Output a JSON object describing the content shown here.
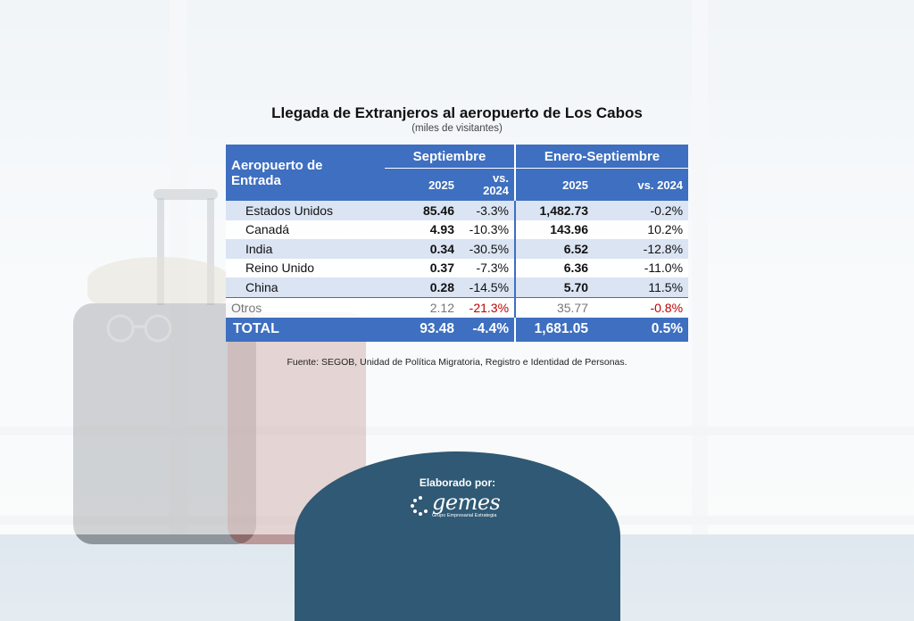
{
  "title": "Llegada de Extranjeros al aeropuerto de Los Cabos",
  "subtitle": "(miles de visitantes)",
  "table": {
    "header_left": "Aeropuerto de Entrada",
    "group1": "Septiembre",
    "group2": "Enero-Septiembre",
    "col_year": "2025",
    "col_vs_short": "vs. 2024",
    "col_vs": "vs. 2024",
    "rows": [
      {
        "country": "Estados Unidos",
        "sep": "85.46",
        "sep_vs": "-3.3%",
        "ytd": "1,482.73",
        "ytd_vs": "-0.2%"
      },
      {
        "country": "Canadá",
        "sep": "4.93",
        "sep_vs": "-10.3%",
        "ytd": "143.96",
        "ytd_vs": "10.2%"
      },
      {
        "country": "India",
        "sep": "0.34",
        "sep_vs": "-30.5%",
        "ytd": "6.52",
        "ytd_vs": "-12.8%"
      },
      {
        "country": "Reino Unido",
        "sep": "0.37",
        "sep_vs": "-7.3%",
        "ytd": "6.36",
        "ytd_vs": "-11.0%"
      },
      {
        "country": "China",
        "sep": "0.28",
        "sep_vs": "-14.5%",
        "ytd": "5.70",
        "ytd_vs": "11.5%"
      }
    ],
    "otros": {
      "country": "Otros",
      "sep": "2.12",
      "sep_vs": "-21.3%",
      "ytd": "35.77",
      "ytd_vs": "-0.8%"
    },
    "total": {
      "country": "TOTAL",
      "sep": "93.48",
      "sep_vs": "-4.4%",
      "ytd": "1,681.05",
      "ytd_vs": "0.5%"
    }
  },
  "source": "Fuente: SEGOB, Unidad de Política Migratoria, Registro e Identidad de Personas.",
  "badge": {
    "label": "Elaborado por:",
    "logo_text": "gemes",
    "logo_sub": "Grupo Empresarial Estrategia"
  },
  "colors": {
    "header_blue": "#3e6fc0",
    "negative": "#c00000",
    "badge": "#2f5974"
  }
}
